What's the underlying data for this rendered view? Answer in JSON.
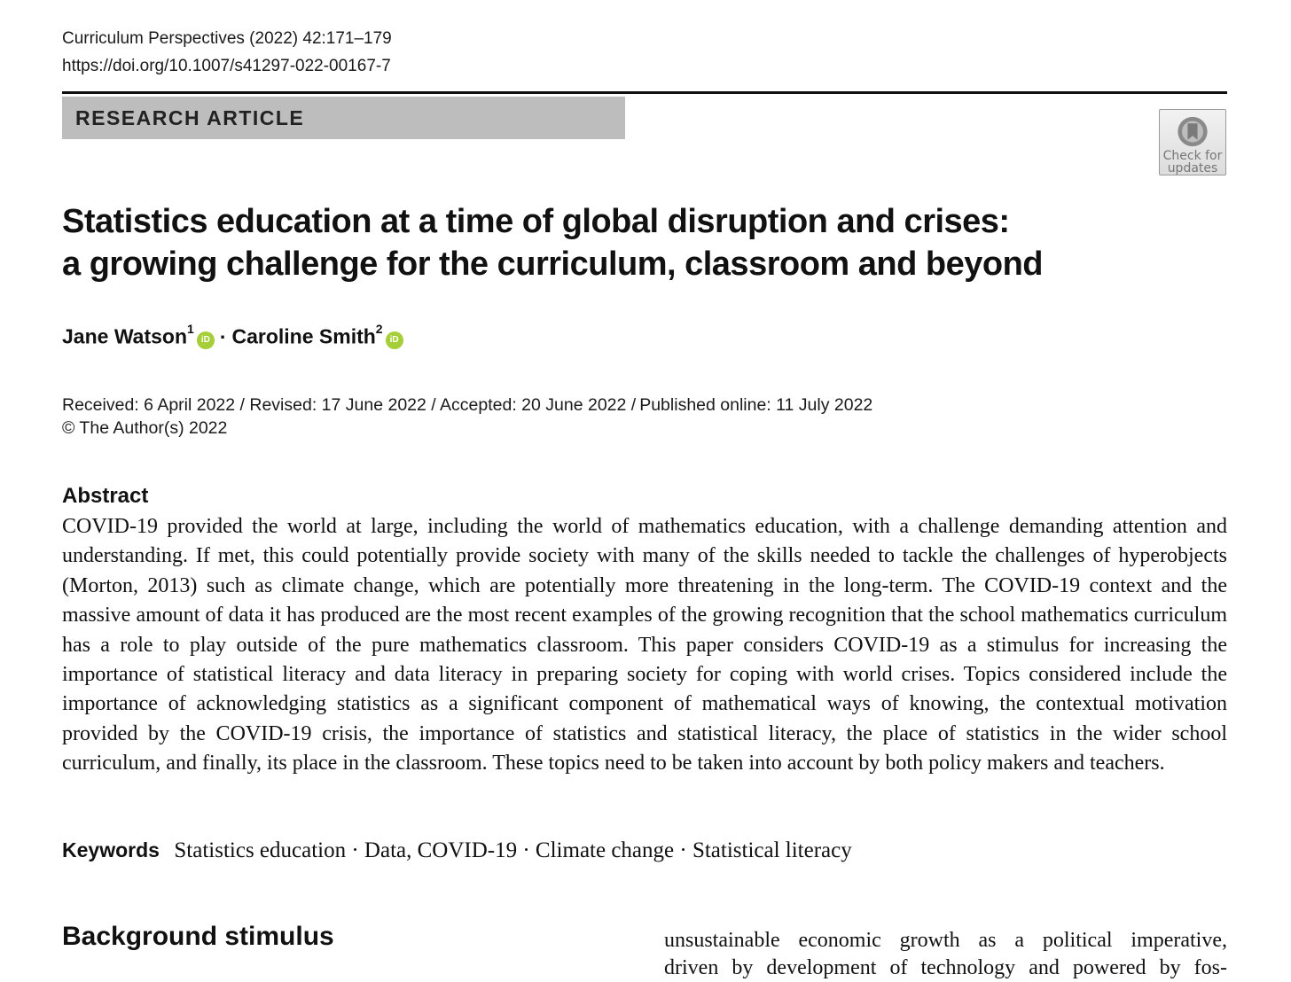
{
  "header": {
    "journal": "Curriculum Perspectives  (2022) 42:171–179",
    "doi": "https://doi.org/10.1007/s41297-022-00167-7"
  },
  "banner": {
    "label": "RESEARCH ARTICLE"
  },
  "badge": {
    "line1": "Check for",
    "line2": "updates",
    "icon": "bookmark-circle-icon"
  },
  "title": {
    "line1": "Statistics education at a time of global disruption and crises:",
    "line2": "a growing challenge for the curriculum, classroom and beyond"
  },
  "authors": [
    {
      "name": "Jane Watson",
      "affiliation": "1",
      "orcid": "iD"
    },
    {
      "name": "Caroline Smith",
      "affiliation": "2",
      "orcid": "iD"
    }
  ],
  "author_separator": "·",
  "dates": {
    "history": "Received: 6 April 2022 / Revised: 17 June 2022 / Accepted: 20 June 2022 /",
    "published": "Published online: 11 July 2022"
  },
  "copyright": "© The Author(s) 2022",
  "abstract": {
    "heading": "Abstract",
    "text": "COVID-19 provided the world at large, including the world of mathematics education, with a challenge demanding attention and understanding. If met, this could potentially provide society with many of the skills needed to tackle the challenges of hyperobjects (Morton, 2013) such as climate change, which are potentially more threatening in the long-term. The COVID-19 context and the massive amount of data it has produced are the most recent examples of the growing recognition that the school mathematics curriculum has a role to play outside of the pure mathematics classroom. This paper considers COVID-19 as a stimulus for increasing the importance of statistical literacy and data literacy in preparing society for coping with world crises. Topics considered include the importance of acknowledging statistics as a significant component of mathematical ways of knowing, the contextual motivation provided by the COVID-19 crisis, the importance of statistics and statistical literacy, the place of statistics in the wider school curriculum, and finally, its place in the classroom. These topics need to be taken into account by both policy makers and teachers."
  },
  "keywords": {
    "label": "Keywords",
    "text": "Statistics education · Data, COVID-19 · Climate change · Statistical literacy"
  },
  "section": {
    "heading": "Background stimulus"
  },
  "right_column": {
    "line1": "unsustainable economic growth as a political imperative,",
    "line2": "driven by development of technology and powered by fos-"
  }
}
